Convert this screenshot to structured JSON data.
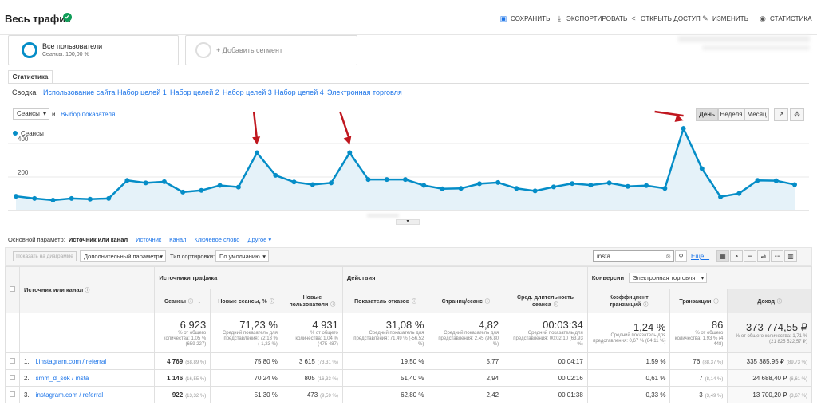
{
  "page": {
    "title": "Весь трафик",
    "verified": "✔"
  },
  "toolbar": {
    "save": "СОХРАНИТЬ",
    "export": "ЭКСПОРТИРОВАТЬ",
    "share": "ОТКРЫТЬ ДОСТУП",
    "edit": "ИЗМЕНИТЬ",
    "stats": "СТАТИСТИКА"
  },
  "segments": {
    "all_users": "Все пользователи",
    "all_users_sub": "Сеансы: 100,00 %",
    "add": "+ Добавить сегмент"
  },
  "tabs": {
    "main": "Статистика",
    "sub": [
      "Сводка",
      "Использование сайта",
      "Набор целей 1",
      "Набор целей 2",
      "Набор целей 3",
      "Набор целей 4",
      "Электронная торговля"
    ]
  },
  "chart_controls": {
    "metric": "Сеансы",
    "and": "и",
    "select_metric": "Выбор показателя",
    "day": "День",
    "week": "Неделя",
    "month": "Месяц",
    "legend": "Сеансы"
  },
  "chart_data": {
    "type": "area",
    "series": [
      {
        "name": "Сеансы",
        "color": "#058dc7",
        "values": [
          85,
          72,
          62,
          72,
          68,
          72,
          180,
          165,
          172,
          110,
          120,
          150,
          140,
          345,
          210,
          170,
          155,
          165,
          345,
          185,
          185,
          185,
          150,
          130,
          132,
          160,
          167,
          132,
          117,
          141,
          161,
          152,
          165,
          144,
          149,
          132,
          490,
          250,
          82,
          102,
          180,
          178,
          155
        ]
      }
    ],
    "ylim": [
      0,
      600
    ],
    "yticks": [
      200,
      400
    ]
  },
  "dimensions": {
    "primary_label": "Основной параметр:",
    "items": [
      "Источник или канал",
      "Источник",
      "Канал",
      "Ключевое слово",
      "Другое ▾"
    ]
  },
  "filters": {
    "show_on_chart": "Показать на диаграмме",
    "secondary": "Дополнительный параметр",
    "sort_type_label": "Тип сортировки:",
    "sort_value": "По умолчанию",
    "search_value": "insta",
    "advanced": "Ещё..."
  },
  "table": {
    "col_source": "Источник или канал",
    "group_acq": "Источники трафика",
    "group_beh": "Действия",
    "conv_label": "Конверсии",
    "conv_value": "Электронная торговля",
    "headers": [
      "Сеансы",
      "Новые сеансы, %",
      "Новые пользователи",
      "Показатель отказов",
      "Страниц/сеанс",
      "Сред. длительность сеанса",
      "Коэффициент транзакций",
      "Транзакции",
      "Доход"
    ],
    "totals": [
      {
        "v": "6 923",
        "s": "% от общего количества: 1,05 % (659 227)"
      },
      {
        "v": "71,23 %",
        "s": "Средний показатель для представления: 72,13 % (-1,23 %)"
      },
      {
        "v": "4 931",
        "s": "% от общего количества: 1,04 % (475 487)"
      },
      {
        "v": "31,08 %",
        "s": "Средний показатель для представления: 71,49 % (-56,52 %)"
      },
      {
        "v": "4,82",
        "s": "Средний показатель для представления: 2,45 (96,80 %)"
      },
      {
        "v": "00:03:34",
        "s": "Средний показатель для представления: 00:02:10 (63,93 %)"
      },
      {
        "v": "1,24 %",
        "s": "Средний показатель для представления: 0,67 % (84,11 %)"
      },
      {
        "v": "86",
        "s": "% от общего количества: 1,93 % (4 448)"
      },
      {
        "v": "373 774,55 ₽",
        "s": "% от общего количества: 1,71 % (21 825 522,57 ₽)"
      }
    ],
    "rows": [
      {
        "n": "1.",
        "name": "l.instagram.com / referral",
        "c": [
          [
            "4 769",
            "(68,89 %)"
          ],
          [
            "75,80 %",
            ""
          ],
          [
            "3 615",
            "(73,31 %)"
          ],
          [
            "19,50 %",
            ""
          ],
          [
            "5,77",
            ""
          ],
          [
            "00:04:17",
            ""
          ],
          [
            "1,59 %",
            ""
          ],
          [
            "76",
            "(88,37 %)"
          ],
          [
            "335 385,95 ₽",
            "(89,73 %)"
          ]
        ]
      },
      {
        "n": "2.",
        "name": "smm_d_sok / insta",
        "c": [
          [
            "1 146",
            "(16,55 %)"
          ],
          [
            "70,24 %",
            ""
          ],
          [
            "805",
            "(16,33 %)"
          ],
          [
            "51,40 %",
            ""
          ],
          [
            "2,94",
            ""
          ],
          [
            "00:02:16",
            ""
          ],
          [
            "0,61 %",
            ""
          ],
          [
            "7",
            "(8,14 %)"
          ],
          [
            "24 688,40 ₽",
            "(6,61 %)"
          ]
        ]
      },
      {
        "n": "3.",
        "name": "instagram.com / referral",
        "c": [
          [
            "922",
            "(13,32 %)"
          ],
          [
            "51,30 %",
            ""
          ],
          [
            "473",
            "(9,59 %)"
          ],
          [
            "62,80 %",
            ""
          ],
          [
            "2,42",
            ""
          ],
          [
            "00:01:38",
            ""
          ],
          [
            "0,33 %",
            ""
          ],
          [
            "3",
            "(3,49 %)"
          ],
          [
            "13 700,20 ₽",
            "(3,67 %)"
          ]
        ]
      }
    ]
  }
}
